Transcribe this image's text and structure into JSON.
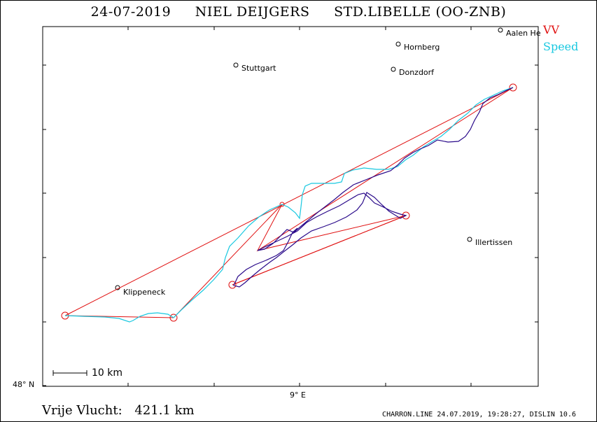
{
  "title": {
    "date": "24-07-2019",
    "pilot": "NIEL DEIJGERS",
    "glider": "STD.LIBELLE (OO-ZNB)"
  },
  "legend": {
    "vv": "VV",
    "speed": "Speed",
    "colors": {
      "vv": "#e01010",
      "speed": "#18c8e0",
      "track": "#2a0a8a"
    }
  },
  "axes": {
    "lat_label": "48° N",
    "lon_label": "9° E"
  },
  "scale": {
    "label": "10 km"
  },
  "places": [
    {
      "name": "Stuttgart"
    },
    {
      "name": "Hornberg"
    },
    {
      "name": "Donzdorf"
    },
    {
      "name": "Aalen He"
    },
    {
      "name": "Illertissen"
    },
    {
      "name": "Klippeneck"
    }
  ],
  "distance": {
    "label": "Vrije Vlucht:",
    "value": "421.1 km"
  },
  "footer": "CHARRON.LINE 24.07.2019, 19:28:27, DISLIN 10.6"
}
